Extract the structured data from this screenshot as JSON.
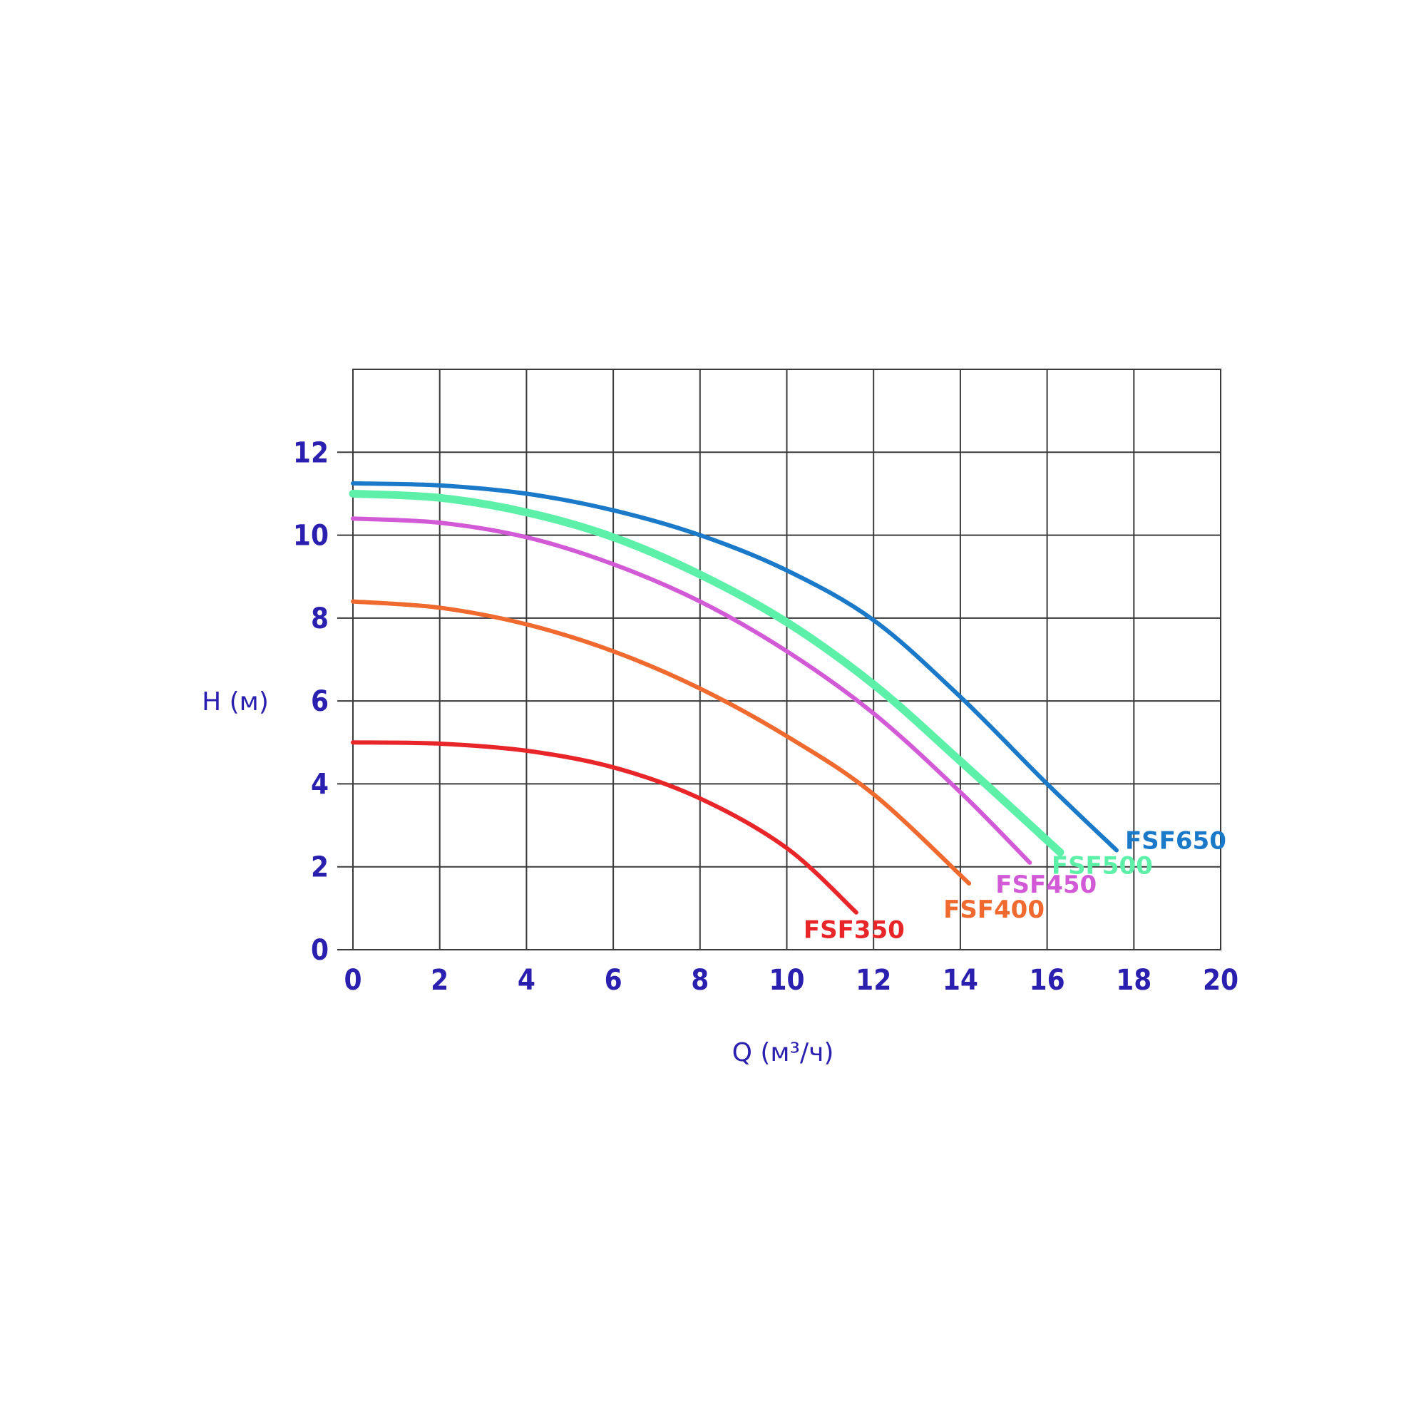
{
  "chart_data": {
    "type": "line",
    "xlabel": "Q (м³/ч)",
    "ylabel": "H (м)",
    "xlim": [
      0,
      20
    ],
    "ylim": [
      0,
      14
    ],
    "xticks": [
      "0",
      "2",
      "4",
      "6",
      "8",
      "10",
      "12",
      "14",
      "16",
      "18",
      "20"
    ],
    "yticks": [
      "0",
      "2",
      "4",
      "6",
      "8",
      "10",
      "12"
    ],
    "grid": true,
    "text_color": "#2b1fb0",
    "grid_color": "#3a3a3a",
    "series": [
      {
        "name": "FSF650",
        "color": "#1b79c9",
        "points": [
          [
            0,
            11.25
          ],
          [
            2,
            11.2
          ],
          [
            4,
            11.0
          ],
          [
            6,
            10.6
          ],
          [
            8,
            10.0
          ],
          [
            10,
            9.15
          ],
          [
            12,
            7.95
          ],
          [
            14,
            6.1
          ],
          [
            16,
            4.0
          ],
          [
            17.6,
            2.4
          ]
        ]
      },
      {
        "name": "FSF500",
        "color": "#5cf0a8",
        "points": [
          [
            0,
            11.0
          ],
          [
            2,
            10.9
          ],
          [
            4,
            10.55
          ],
          [
            6,
            9.95
          ],
          [
            8,
            9.05
          ],
          [
            10,
            7.9
          ],
          [
            12,
            6.4
          ],
          [
            14,
            4.55
          ],
          [
            16.3,
            2.35
          ]
        ]
      },
      {
        "name": "FSF450",
        "color": "#d25ad6",
        "points": [
          [
            0,
            10.4
          ],
          [
            2,
            10.3
          ],
          [
            4,
            9.95
          ],
          [
            6,
            9.3
          ],
          [
            8,
            8.4
          ],
          [
            10,
            7.2
          ],
          [
            12,
            5.7
          ],
          [
            14,
            3.8
          ],
          [
            15.6,
            2.1
          ]
        ]
      },
      {
        "name": "FSF400",
        "color": "#f06a30",
        "points": [
          [
            0,
            8.4
          ],
          [
            2,
            8.25
          ],
          [
            4,
            7.85
          ],
          [
            6,
            7.2
          ],
          [
            8,
            6.3
          ],
          [
            10,
            5.15
          ],
          [
            12,
            3.75
          ],
          [
            14.2,
            1.6
          ]
        ]
      },
      {
        "name": "FSF350",
        "color": "#e8262a",
        "points": [
          [
            0,
            5.0
          ],
          [
            2,
            4.97
          ],
          [
            4,
            4.8
          ],
          [
            6,
            4.4
          ],
          [
            8,
            3.65
          ],
          [
            10,
            2.45
          ],
          [
            11.6,
            0.9
          ]
        ]
      }
    ]
  }
}
